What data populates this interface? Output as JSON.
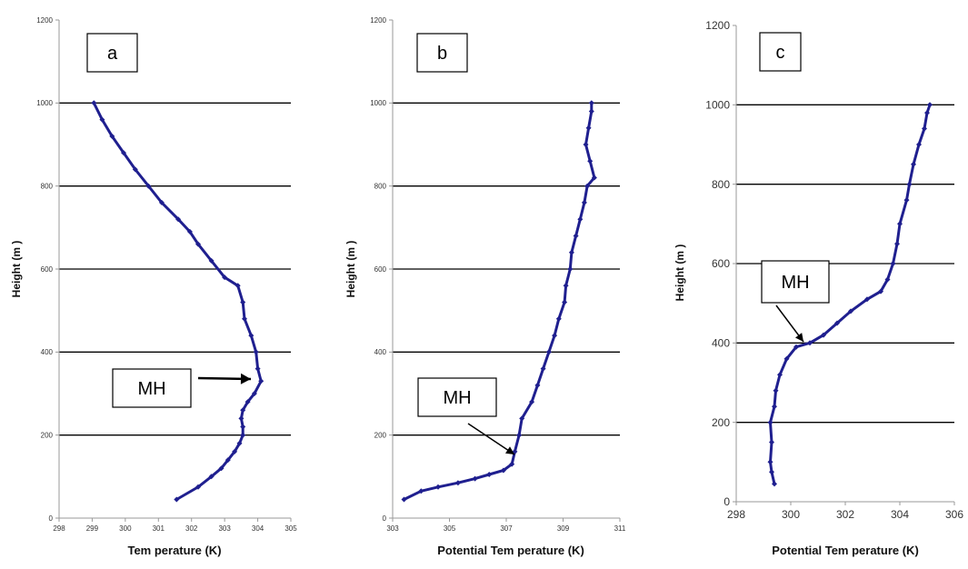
{
  "colors": {
    "series": "#1f1f8f",
    "grid": "#000000",
    "axis": "#9a9a9a"
  },
  "chart_data": [
    {
      "type": "line",
      "panel_label": "a",
      "annotation": "MH",
      "xlabel": "Tem perature (K)",
      "ylabel": "Height (m )",
      "xlim": [
        298,
        305
      ],
      "ylim": [
        0,
        1200
      ],
      "x_ticks": [
        "298",
        "299",
        "300",
        "301",
        "302",
        "303",
        "304",
        "305"
      ],
      "y_ticks": [
        "0",
        "200",
        "400",
        "600",
        "800",
        "1000",
        "1200"
      ],
      "gridlines_y": [
        200,
        400,
        600,
        800,
        1000
      ],
      "mh_height": 330,
      "mh_temp": 304.1,
      "series": [
        {
          "values": [
            [
              301.55,
              45
            ],
            [
              302.2,
              75
            ],
            [
              302.6,
              100
            ],
            [
              302.9,
              120
            ],
            [
              303.1,
              140
            ],
            [
              303.3,
              160
            ],
            [
              303.45,
              180
            ],
            [
              303.55,
              200
            ],
            [
              303.55,
              220
            ],
            [
              303.5,
              240
            ],
            [
              303.55,
              260
            ],
            [
              303.7,
              280
            ],
            [
              303.9,
              300
            ],
            [
              304.1,
              330
            ],
            [
              304.0,
              360
            ],
            [
              303.95,
              400
            ],
            [
              303.8,
              440
            ],
            [
              303.6,
              480
            ],
            [
              303.55,
              520
            ],
            [
              303.4,
              560
            ],
            [
              303.0,
              580
            ],
            [
              302.6,
              620
            ],
            [
              302.2,
              660
            ],
            [
              301.95,
              690
            ],
            [
              301.6,
              720
            ],
            [
              301.1,
              760
            ],
            [
              300.7,
              800
            ],
            [
              300.3,
              840
            ],
            [
              299.95,
              880
            ],
            [
              299.6,
              920
            ],
            [
              299.3,
              960
            ],
            [
              299.05,
              1000
            ]
          ]
        }
      ]
    },
    {
      "type": "line",
      "panel_label": "b",
      "annotation": "MH",
      "xlabel": "Potential Tem perature (K)",
      "ylabel": "Height (m )",
      "xlim": [
        303,
        311
      ],
      "ylim": [
        0,
        1200
      ],
      "x_ticks": [
        "303",
        "305",
        "307",
        "309",
        "311"
      ],
      "y_ticks": [
        "0",
        "200",
        "400",
        "600",
        "800",
        "1000",
        "1200"
      ],
      "gridlines_y": [
        200,
        400,
        600,
        800,
        1000
      ],
      "mh_height": 140,
      "mh_temp": 307.25,
      "series": [
        {
          "values": [
            [
              303.4,
              45
            ],
            [
              304.0,
              65
            ],
            [
              304.6,
              75
            ],
            [
              305.3,
              85
            ],
            [
              305.9,
              95
            ],
            [
              306.4,
              105
            ],
            [
              306.9,
              115
            ],
            [
              307.2,
              130
            ],
            [
              307.3,
              160
            ],
            [
              307.45,
              200
            ],
            [
              307.55,
              240
            ],
            [
              307.9,
              280
            ],
            [
              308.1,
              320
            ],
            [
              308.3,
              360
            ],
            [
              308.5,
              400
            ],
            [
              308.7,
              440
            ],
            [
              308.85,
              480
            ],
            [
              309.05,
              520
            ],
            [
              309.1,
              560
            ],
            [
              309.25,
              600
            ],
            [
              309.3,
              640
            ],
            [
              309.45,
              680
            ],
            [
              309.6,
              720
            ],
            [
              309.75,
              760
            ],
            [
              309.85,
              800
            ],
            [
              310.1,
              820
            ],
            [
              309.95,
              860
            ],
            [
              309.8,
              900
            ],
            [
              309.9,
              940
            ],
            [
              310.0,
              980
            ],
            [
              310.0,
              1000
            ]
          ]
        }
      ]
    },
    {
      "type": "line",
      "panel_label": "c",
      "annotation": "MH",
      "xlabel": "Potential Tem perature (K)",
      "ylabel": "Height (m )",
      "xlim": [
        298,
        306
      ],
      "ylim": [
        0,
        1200
      ],
      "x_ticks": [
        "298",
        "300",
        "302",
        "304",
        "306"
      ],
      "y_ticks": [
        "0",
        "200",
        "400",
        "600",
        "800",
        "1000",
        "1200"
      ],
      "gridlines_y": [
        200,
        400,
        600,
        800,
        1000
      ],
      "mh_height": 395,
      "mh_temp": 300.3,
      "series": [
        {
          "values": [
            [
              299.4,
              45
            ],
            [
              299.3,
              75
            ],
            [
              299.25,
              100
            ],
            [
              299.3,
              150
            ],
            [
              299.25,
              200
            ],
            [
              299.4,
              240
            ],
            [
              299.45,
              280
            ],
            [
              299.6,
              320
            ],
            [
              299.85,
              360
            ],
            [
              300.2,
              390
            ],
            [
              300.7,
              400
            ],
            [
              301.2,
              420
            ],
            [
              301.7,
              450
            ],
            [
              302.2,
              480
            ],
            [
              302.8,
              510
            ],
            [
              303.3,
              530
            ],
            [
              303.55,
              560
            ],
            [
              303.75,
              600
            ],
            [
              303.9,
              650
            ],
            [
              304.0,
              700
            ],
            [
              304.25,
              760
            ],
            [
              304.35,
              800
            ],
            [
              304.5,
              850
            ],
            [
              304.7,
              900
            ],
            [
              304.9,
              940
            ],
            [
              305.0,
              980
            ],
            [
              305.1,
              1000
            ]
          ]
        }
      ]
    }
  ]
}
